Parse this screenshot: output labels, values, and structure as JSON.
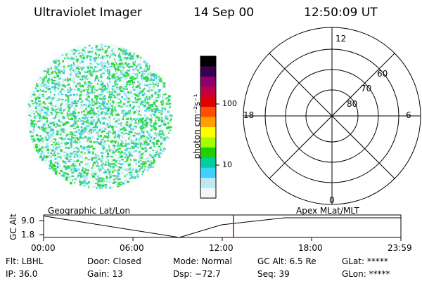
{
  "header": {
    "instrument": "Ultraviolet Imager",
    "date": "14 Sep 00",
    "time": "12:50:09 UT"
  },
  "colorbar": {
    "unit_label": "photon cm⁻²s⁻¹",
    "ticks": [
      "100",
      "10"
    ],
    "colors": [
      "#000000",
      "#3a0050",
      "#8a0070",
      "#c00040",
      "#e00000",
      "#ff5000",
      "#ffa000",
      "#ffff00",
      "#a0ff00",
      "#20d000",
      "#00d0a0",
      "#40d0ff",
      "#bfe8f5",
      "#f0f8fb"
    ]
  },
  "polar": {
    "mlt_labels": {
      "top": "12",
      "left": "18",
      "right": "6",
      "bottom": "0"
    },
    "lat_labels": [
      "60",
      "70",
      "80"
    ]
  },
  "timeline": {
    "left_title": "Geographic Lat/Lon",
    "right_title": "Apex  MLat/MLT",
    "y_axis_label": "GC Alt",
    "y_ticks": [
      "9.0",
      "1.8"
    ],
    "x_ticks": [
      "00:00",
      "06:00",
      "12:00",
      "18:00",
      "23:59"
    ],
    "marker_color": "#cc0000"
  },
  "status": {
    "flt": "Flt: LBHL",
    "ip": "IP: 36.0",
    "door": "Door: Closed",
    "gain": "Gain: 13",
    "mode": "Mode: Normal",
    "dsp": "Dsp:   −72.7",
    "gc_alt": "GC Alt: 6.5 Re",
    "seq": "Seq: 39",
    "glat": "GLat: *****",
    "glon": "GLon: *****"
  }
}
